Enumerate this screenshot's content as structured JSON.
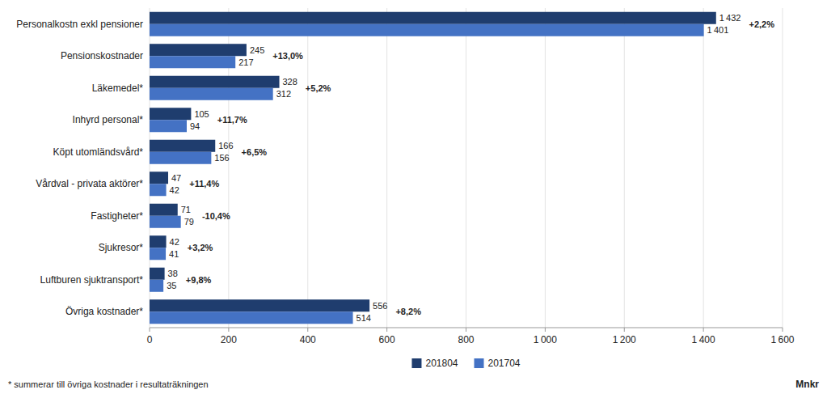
{
  "chart_data": {
    "type": "bar",
    "orientation": "horizontal",
    "categories": [
      "Personalkostn exkl pensioner",
      "Pensionskostnader",
      "Läkemedel*",
      "Inhyrd personal*",
      "Köpt utomländsvård*",
      "Vårdval - privata aktörer*",
      "Fastigheter*",
      "Sjukresor*",
      "Luftburen sjuktransport*",
      "Övriga kostnader*"
    ],
    "series": [
      {
        "name": "201804",
        "color": "#1F3D6E",
        "values": [
          1432,
          245,
          328,
          105,
          166,
          47,
          71,
          42,
          38,
          556
        ],
        "value_labels": [
          "1 432",
          "245",
          "328",
          "105",
          "166",
          "47",
          "71",
          "42",
          "38",
          "556"
        ]
      },
      {
        "name": "201704",
        "color": "#4472C4",
        "values": [
          1401,
          217,
          312,
          94,
          156,
          42,
          79,
          41,
          35,
          514
        ],
        "value_labels": [
          "1 401",
          "217",
          "312",
          "94",
          "156",
          "42",
          "79",
          "41",
          "35",
          "514"
        ]
      }
    ],
    "annotations": [
      "+2,2%",
      "+13,0%",
      "+5,2%",
      "+11,7%",
      "+6,5%",
      "+11,4%",
      "-10,4%",
      "+3,2%",
      "+9,8%",
      "+8,2%"
    ],
    "data_labels": true,
    "xlabel": "Mnkr",
    "footnote": "* summerar till övriga kostnader i resultaträkningen",
    "xlim": [
      0,
      1600
    ],
    "xticks": [
      0,
      200,
      400,
      600,
      800,
      {
        "value": 1000,
        "label": "1 000"
      },
      {
        "value": 1200,
        "label": "1 200"
      },
      {
        "value": 1400,
        "label": "1 400"
      },
      {
        "value": 1600,
        "label": "1 600"
      }
    ],
    "grid": true,
    "legend": "bottom"
  }
}
